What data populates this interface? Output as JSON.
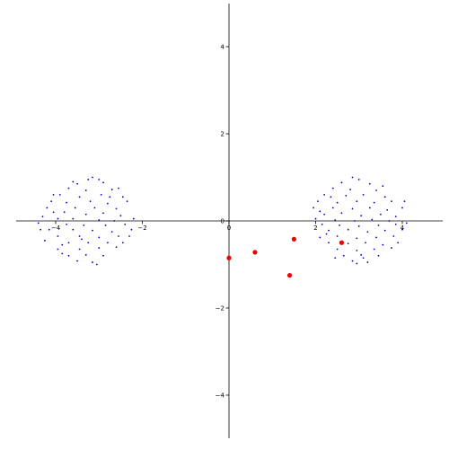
{
  "chart_data": {
    "type": "scatter",
    "title": "",
    "xlabel": "",
    "ylabel": "",
    "xlim": [
      -5,
      5
    ],
    "ylim": [
      -5,
      5
    ],
    "grid": false,
    "legend": "none",
    "x_ticks": [
      {
        "value": -4,
        "label": "−4"
      },
      {
        "value": -2,
        "label": "−2"
      },
      {
        "value": 0,
        "label": "0"
      },
      {
        "value": 2,
        "label": "2"
      },
      {
        "value": 4,
        "label": "4"
      }
    ],
    "y_ticks": [
      {
        "value": -4,
        "label": "−4"
      },
      {
        "value": -2,
        "label": "−2"
      },
      {
        "value": 0,
        "label": "0"
      },
      {
        "value": 2,
        "label": "2"
      },
      {
        "value": 4,
        "label": "4"
      }
    ],
    "series": [
      {
        "color": "#0000cc",
        "marker": "small-dot",
        "points": [
          [
            -3.15,
            1.0
          ],
          [
            -3.0,
            0.95
          ],
          [
            -3.5,
            0.85
          ],
          [
            -2.9,
            0.88
          ],
          [
            -3.7,
            0.75
          ],
          [
            -3.3,
            0.7
          ],
          [
            -2.7,
            0.72
          ],
          [
            -3.9,
            0.6
          ],
          [
            -3.45,
            0.55
          ],
          [
            -2.95,
            0.6
          ],
          [
            -2.45,
            0.55
          ],
          [
            -4.1,
            0.45
          ],
          [
            -3.75,
            0.42
          ],
          [
            -3.2,
            0.45
          ],
          [
            -2.8,
            0.4
          ],
          [
            -2.35,
            0.45
          ],
          [
            -4.2,
            0.3
          ],
          [
            -3.55,
            0.3
          ],
          [
            -3.1,
            0.3
          ],
          [
            -2.6,
            0.28
          ],
          [
            -3.8,
            0.2
          ],
          [
            -3.3,
            0.15
          ],
          [
            -2.9,
            0.18
          ],
          [
            -2.5,
            0.12
          ],
          [
            -4.3,
            0.1
          ],
          [
            -3.95,
            0.05
          ],
          [
            -3.6,
            0.05
          ],
          [
            -3.0,
            0.02
          ],
          [
            -2.65,
            0.0
          ],
          [
            -2.2,
            0.05
          ],
          [
            -4.4,
            -0.05
          ],
          [
            -3.75,
            -0.08
          ],
          [
            -3.35,
            -0.1
          ],
          [
            -2.85,
            -0.1
          ],
          [
            -2.4,
            -0.08
          ],
          [
            -4.15,
            -0.2
          ],
          [
            -3.6,
            -0.2
          ],
          [
            -3.15,
            -0.22
          ],
          [
            -2.7,
            -0.25
          ],
          [
            -2.25,
            -0.2
          ],
          [
            -3.95,
            -0.35
          ],
          [
            -3.45,
            -0.35
          ],
          [
            -3.0,
            -0.38
          ],
          [
            -2.55,
            -0.35
          ],
          [
            -4.25,
            -0.45
          ],
          [
            -3.7,
            -0.5
          ],
          [
            -3.25,
            -0.5
          ],
          [
            -2.8,
            -0.5
          ],
          [
            -3.95,
            -0.65
          ],
          [
            -3.45,
            -0.65
          ],
          [
            -3.0,
            -0.62
          ],
          [
            -2.6,
            -0.6
          ],
          [
            -3.7,
            -0.8
          ],
          [
            -3.3,
            -0.78
          ],
          [
            -2.9,
            -0.8
          ],
          [
            -3.5,
            -0.92
          ],
          [
            -3.15,
            -0.95
          ],
          [
            -3.85,
            -0.75
          ],
          [
            -2.45,
            -0.5
          ],
          [
            -3.05,
            -1.0
          ],
          [
            -4.05,
            0.2
          ],
          [
            -3.25,
            0.95
          ],
          [
            -2.3,
            -0.35
          ],
          [
            -4.35,
            -0.2
          ],
          [
            -3.6,
            0.9
          ],
          [
            -2.55,
            0.75
          ],
          [
            -3.85,
            -0.55
          ],
          [
            -2.75,
            0.55
          ],
          [
            -3.4,
            -0.42
          ],
          [
            -4.05,
            0.6
          ],
          [
            2.85,
            1.0
          ],
          [
            3.0,
            0.95
          ],
          [
            2.6,
            0.88
          ],
          [
            3.25,
            0.85
          ],
          [
            2.4,
            0.75
          ],
          [
            2.8,
            0.72
          ],
          [
            3.4,
            0.7
          ],
          [
            2.2,
            0.6
          ],
          [
            2.7,
            0.58
          ],
          [
            3.1,
            0.6
          ],
          [
            3.6,
            0.55
          ],
          [
            2.05,
            0.45
          ],
          [
            2.5,
            0.42
          ],
          [
            2.95,
            0.45
          ],
          [
            3.35,
            0.42
          ],
          [
            3.75,
            0.45
          ],
          [
            1.95,
            0.3
          ],
          [
            2.4,
            0.3
          ],
          [
            2.85,
            0.28
          ],
          [
            3.25,
            0.3
          ],
          [
            3.65,
            0.25
          ],
          [
            4.0,
            0.3
          ],
          [
            2.2,
            0.15
          ],
          [
            2.6,
            0.18
          ],
          [
            3.05,
            0.12
          ],
          [
            3.5,
            0.15
          ],
          [
            3.85,
            0.1
          ],
          [
            2.0,
            0.05
          ],
          [
            2.45,
            0.02
          ],
          [
            2.9,
            0.0
          ],
          [
            3.3,
            0.03
          ],
          [
            3.7,
            0.0
          ],
          [
            4.1,
            -0.05
          ],
          [
            2.15,
            -0.08
          ],
          [
            2.55,
            -0.1
          ],
          [
            3.0,
            -0.12
          ],
          [
            3.45,
            -0.1
          ],
          [
            3.85,
            -0.08
          ],
          [
            2.3,
            -0.22
          ],
          [
            2.75,
            -0.2
          ],
          [
            3.2,
            -0.25
          ],
          [
            3.6,
            -0.22
          ],
          [
            4.0,
            -0.2
          ],
          [
            2.1,
            -0.38
          ],
          [
            2.5,
            -0.35
          ],
          [
            2.95,
            -0.4
          ],
          [
            3.4,
            -0.38
          ],
          [
            3.8,
            -0.35
          ],
          [
            2.3,
            -0.5
          ],
          [
            2.75,
            -0.52
          ],
          [
            3.15,
            -0.5
          ],
          [
            3.55,
            -0.55
          ],
          [
            2.5,
            -0.65
          ],
          [
            2.95,
            -0.68
          ],
          [
            3.35,
            -0.65
          ],
          [
            3.75,
            -0.62
          ],
          [
            2.65,
            -0.8
          ],
          [
            3.05,
            -0.78
          ],
          [
            3.45,
            -0.8
          ],
          [
            2.85,
            -0.92
          ],
          [
            3.2,
            -0.95
          ],
          [
            2.95,
            -0.98
          ],
          [
            2.35,
            0.55
          ],
          [
            3.55,
            0.8
          ],
          [
            2.25,
            -0.3
          ],
          [
            3.9,
            -0.5
          ],
          [
            2.1,
            0.22
          ],
          [
            4.05,
            0.45
          ],
          [
            3.1,
            -0.85
          ],
          [
            2.45,
            -0.85
          ]
        ]
      },
      {
        "color": "#ee0000",
        "marker": "large-dot",
        "points": [
          [
            0.0,
            -0.85
          ],
          [
            0.6,
            -0.72
          ],
          [
            1.5,
            -0.42
          ],
          [
            1.4,
            -1.25
          ],
          [
            2.6,
            -0.5
          ]
        ]
      }
    ]
  }
}
